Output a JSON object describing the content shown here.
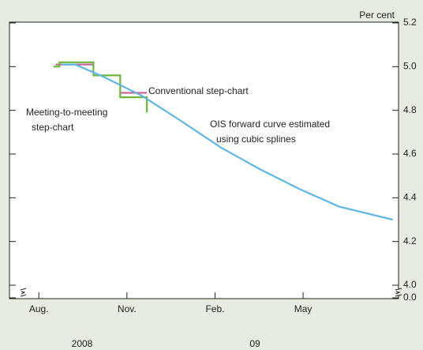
{
  "chart_data": {
    "type": "line",
    "y_axis_label": "Per cent",
    "year_labels": [
      "2008",
      "09"
    ],
    "annotations": [
      "Conventional step-chart",
      "Meeting-to-meeting",
      "step-chart",
      "OIS forward curve estimated",
      "using cubic splines"
    ],
    "xlim": [
      -0.5,
      12.75
    ],
    "xticks": [
      {
        "value": 0.5,
        "label": "Aug."
      },
      {
        "value": 3.5,
        "label": "Nov."
      },
      {
        "value": 6.5,
        "label": "Feb."
      },
      {
        "value": 9.5,
        "label": "May"
      }
    ],
    "ylim": [
      4.0,
      5.2
    ],
    "yticks": [
      {
        "value": 0,
        "label": "0.0"
      },
      {
        "value": 4.0,
        "label": "4.0"
      },
      {
        "value": 4.2,
        "label": "4.2"
      },
      {
        "value": 4.4,
        "label": "4.4"
      },
      {
        "value": 4.6,
        "label": "4.6"
      },
      {
        "value": 4.8,
        "label": "4.8"
      },
      {
        "value": 5.0,
        "label": "5.0"
      },
      {
        "value": 5.2,
        "label": "5.2"
      }
    ],
    "axis_break": true,
    "series": [
      {
        "name": "OIS forward curve estimated using cubic splines",
        "color": "#5cb6e6",
        "x": [
          1.29,
          1.74,
          2.68,
          4.02,
          5.36,
          6.7,
          8.04,
          9.38,
          10.72,
          12.55
        ],
        "values": [
          5.01,
          5.01,
          4.955,
          4.866,
          4.75,
          4.63,
          4.53,
          4.44,
          4.36,
          4.3
        ]
      },
      {
        "name": "Meeting-to-meeting step-chart",
        "color": "#6cb83a",
        "x": [
          1.0,
          1.2,
          1.2,
          2.36,
          2.36,
          3.27,
          3.27,
          4.18,
          4.18
        ],
        "values": [
          5.0,
          5.0,
          5.02,
          5.02,
          4.96,
          4.96,
          4.86,
          4.86,
          4.79
        ]
      },
      {
        "name": "Conventional step-chart",
        "color": "#c9679b",
        "x": [
          1.07,
          2.36,
          2.8,
          3.27,
          4.18
        ],
        "values": [
          5.01,
          5.01,
          null,
          4.88,
          4.88
        ]
      }
    ]
  }
}
